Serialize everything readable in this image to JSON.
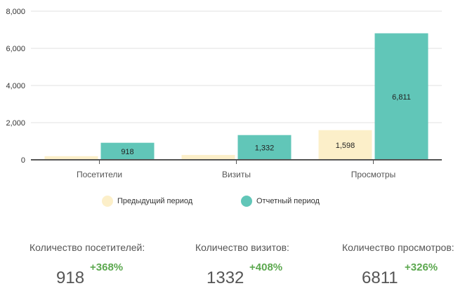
{
  "chart_data": {
    "type": "bar",
    "categories": [
      "Посетители",
      "Визиты",
      "Просмотры"
    ],
    "series": [
      {
        "name": "Предыдущий период",
        "color": "#fcefc9",
        "values": [
          196,
          262,
          1598
        ],
        "labels": [
          "",
          "",
          "1,598"
        ]
      },
      {
        "name": "Отчетный период",
        "color": "#61c6b8",
        "values": [
          918,
          1332,
          6811
        ],
        "labels": [
          "918",
          "1,332",
          "6,811"
        ]
      }
    ],
    "yticks": [
      "0",
      "2,000",
      "4,000",
      "6,000",
      "8,000"
    ],
    "ylim": [
      0,
      8000
    ],
    "grid": true,
    "legend_placement": "bottom"
  },
  "stats": [
    {
      "title": "Количество посетителей:",
      "value": "918",
      "change": "+368%"
    },
    {
      "title": "Количество визитов:",
      "value": "1332",
      "change": "+408%"
    },
    {
      "title": "Количество просмотров:",
      "value": "6811",
      "change": "+326%"
    }
  ]
}
